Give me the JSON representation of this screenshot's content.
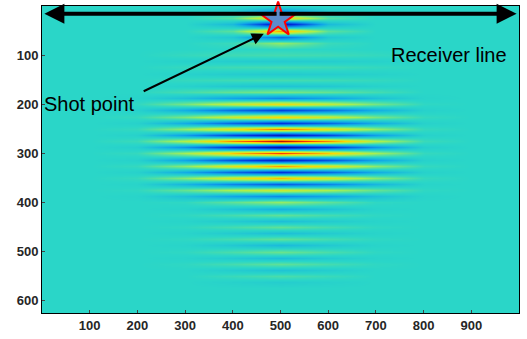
{
  "chart_data": {
    "type": "heatmap",
    "annotations": [
      "Receiver line",
      "Shot point"
    ],
    "xlim": [
      0,
      1000
    ],
    "ylim": [
      625,
      0
    ],
    "xticks": [
      100,
      200,
      300,
      400,
      500,
      600,
      700,
      800,
      900
    ],
    "yticks": [
      100,
      200,
      300,
      400,
      500,
      600
    ],
    "grid": true,
    "zlim": [
      -1,
      1
    ],
    "x": [
      0,
      100,
      200,
      300,
      400,
      500,
      600,
      700,
      800,
      900,
      1000
    ],
    "y": [
      0,
      12.5,
      25,
      37.5,
      50,
      62.5,
      75,
      87.5,
      100,
      112.5,
      125,
      137.5,
      150,
      162.5,
      175,
      187.5,
      200,
      212.5,
      225,
      237.5,
      250,
      262.5,
      275,
      287.5,
      300,
      312.5,
      325,
      337.5,
      350,
      362.5,
      375,
      387.5,
      400,
      412.5,
      425,
      437.5,
      450,
      462.5,
      475,
      487.5,
      500,
      512.5,
      525,
      537.5,
      550,
      562.5,
      575,
      587.5,
      600,
      612.5,
      625
    ],
    "z": [
      [
        0,
        0,
        0,
        0,
        0,
        0,
        0,
        0,
        0,
        0,
        0
      ],
      [
        0,
        0,
        0,
        0,
        -0.05,
        -0.3,
        -0.05,
        0,
        0,
        0,
        0
      ],
      [
        0,
        0,
        0,
        0,
        0.08,
        0.5,
        0.08,
        0,
        0,
        0,
        0
      ],
      [
        0,
        0,
        0,
        0,
        -0.12,
        -0.8,
        -0.12,
        0,
        0,
        0,
        0
      ],
      [
        0,
        0,
        0,
        0,
        0.09,
        0.6,
        0.09,
        0,
        0,
        0,
        0
      ],
      [
        0,
        0,
        0,
        0,
        -0.06,
        -0.4,
        -0.06,
        0,
        0,
        0,
        0
      ],
      [
        0,
        0,
        0,
        0,
        0.03,
        0.2,
        0.03,
        0,
        0,
        0,
        0
      ],
      [
        0,
        0,
        0,
        0,
        0,
        0,
        0,
        0,
        0,
        0,
        0
      ],
      [
        0,
        0,
        0,
        0.02,
        0.04,
        0.05,
        0.04,
        0.02,
        0,
        0,
        0
      ],
      [
        0,
        0,
        0,
        -0.02,
        -0.04,
        -0.05,
        -0.04,
        -0.02,
        0,
        0,
        0
      ],
      [
        0,
        0,
        0,
        0.02,
        0.04,
        0.05,
        0.04,
        0.02,
        0,
        0,
        0
      ],
      [
        0,
        0,
        0,
        -0.02,
        -0.04,
        -0.05,
        -0.04,
        -0.02,
        0,
        0,
        0
      ],
      [
        0,
        0,
        0,
        0.02,
        0.04,
        0.05,
        0.04,
        0.02,
        0,
        0,
        0
      ],
      [
        0,
        0,
        0,
        -0.02,
        -0.06,
        -0.08,
        -0.06,
        -0.02,
        0,
        0,
        0
      ],
      [
        0,
        0,
        0,
        0.05,
        0.11,
        0.15,
        0.11,
        0.05,
        0,
        0,
        0
      ],
      [
        0,
        0,
        -0.01,
        -0.09,
        -0.21,
        -0.3,
        -0.21,
        -0.09,
        -0.01,
        0,
        0
      ],
      [
        0,
        0,
        0.01,
        0.14,
        0.32,
        0.45,
        0.32,
        0.14,
        0.01,
        0,
        0
      ],
      [
        0,
        0,
        -0.02,
        -0.17,
        -0.39,
        -0.55,
        -0.39,
        -0.17,
        -0.02,
        0,
        0
      ],
      [
        0,
        0,
        0.02,
        0.15,
        0.35,
        0.5,
        0.35,
        0.15,
        0.02,
        0,
        0
      ],
      [
        0,
        0,
        -0.02,
        -0.18,
        -0.42,
        -0.6,
        -0.42,
        -0.18,
        -0.02,
        0,
        0
      ],
      [
        0,
        0,
        0.02,
        0.2,
        0.46,
        0.65,
        0.46,
        0.2,
        0.02,
        0,
        0
      ],
      [
        0,
        0,
        -0.02,
        -0.23,
        -0.53,
        -0.75,
        -0.53,
        -0.23,
        -0.02,
        0,
        0
      ],
      [
        0,
        0,
        0.03,
        0.27,
        0.63,
        0.9,
        0.63,
        0.27,
        0.03,
        0,
        0
      ],
      [
        0,
        0,
        -0.03,
        -0.26,
        -0.6,
        -0.85,
        -0.6,
        -0.26,
        -0.03,
        0,
        0
      ],
      [
        0,
        0,
        0.02,
        0.23,
        0.53,
        0.75,
        0.53,
        0.23,
        0.02,
        0,
        0
      ],
      [
        0,
        0,
        -0.02,
        -0.21,
        -0.49,
        -0.7,
        -0.49,
        -0.21,
        -0.02,
        0,
        0
      ],
      [
        0,
        0,
        0.02,
        0.18,
        0.42,
        0.6,
        0.42,
        0.18,
        0.02,
        0,
        0
      ],
      [
        0,
        0,
        -0.02,
        -0.18,
        -0.42,
        -0.6,
        -0.42,
        -0.18,
        -0.02,
        0,
        0
      ],
      [
        0,
        0,
        0.02,
        0.17,
        0.39,
        0.55,
        0.39,
        0.17,
        0.02,
        0,
        0
      ],
      [
        0,
        0,
        -0.01,
        -0.14,
        -0.32,
        -0.45,
        -0.32,
        -0.14,
        -0.01,
        0,
        0
      ],
      [
        0,
        0,
        0.01,
        0.11,
        0.25,
        0.35,
        0.25,
        0.11,
        0.01,
        0,
        0
      ],
      [
        0,
        0,
        -0.01,
        -0.09,
        -0.21,
        -0.3,
        -0.21,
        -0.09,
        -0.01,
        0,
        0
      ],
      [
        0,
        0,
        0,
        0.01,
        0.1,
        0.2,
        0.1,
        0.01,
        0,
        0,
        0
      ],
      [
        0,
        0,
        0,
        -0.01,
        -0.08,
        -0.15,
        -0.08,
        -0.01,
        0,
        0,
        0
      ],
      [
        0,
        0,
        0,
        0.01,
        0.05,
        0.1,
        0.05,
        0.01,
        0,
        0,
        0
      ],
      [
        0,
        0,
        0,
        -0.01,
        -0.05,
        -0.1,
        -0.05,
        -0.01,
        0,
        0,
        0
      ],
      [
        0,
        0,
        0,
        0.01,
        0.05,
        0.1,
        0.05,
        0.01,
        0,
        0,
        0
      ],
      [
        0,
        0,
        0,
        -0.01,
        -0.05,
        -0.1,
        -0.05,
        -0.01,
        0,
        0,
        0
      ],
      [
        0,
        0,
        0,
        0.01,
        0.05,
        0.1,
        0.05,
        0.01,
        0,
        0,
        0
      ],
      [
        0,
        0,
        0,
        -0.01,
        -0.06,
        -0.12,
        -0.06,
        -0.01,
        0,
        0,
        0
      ],
      [
        0,
        0,
        0,
        0.01,
        0.06,
        0.12,
        0.06,
        0.01,
        0,
        0,
        0
      ],
      [
        0,
        0,
        0,
        -0.01,
        -0.05,
        -0.1,
        -0.05,
        -0.01,
        0,
        0,
        0
      ],
      [
        0,
        0,
        0,
        0.01,
        0.05,
        0.1,
        0.05,
        0.01,
        0,
        0,
        0
      ],
      [
        0,
        0,
        0,
        0,
        -0.04,
        -0.08,
        -0.04,
        0,
        0,
        0,
        0
      ],
      [
        0,
        0,
        0,
        0,
        0.03,
        0.06,
        0.03,
        0,
        0,
        0,
        0
      ],
      [
        0,
        0,
        0,
        0,
        -0.02,
        -0.04,
        -0.02,
        0,
        0,
        0,
        0
      ],
      [
        0,
        0,
        0,
        0,
        0,
        0,
        0,
        0,
        0,
        0,
        0
      ],
      [
        0,
        0,
        0,
        0,
        0,
        0,
        0,
        0,
        0,
        0,
        0
      ],
      [
        0,
        0,
        0,
        0,
        0,
        0,
        0,
        0,
        0,
        0,
        0
      ],
      [
        0,
        0,
        0,
        0,
        0,
        0,
        0,
        0,
        0,
        0,
        0
      ],
      [
        0,
        0,
        0,
        0,
        0,
        0,
        0,
        0,
        0,
        0,
        0
      ]
    ]
  }
}
